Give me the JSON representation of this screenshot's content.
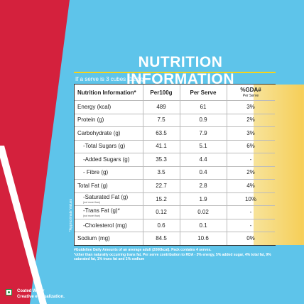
{
  "header": {
    "title": "NUTRITION INFORMATION",
    "subtitle": "If a serve is 3 cubes (12.5g)"
  },
  "table": {
    "columns": [
      "Nutrition Information*",
      "Per100g",
      "Per Serve",
      "%GDA#"
    ],
    "gda_sub": "Per Serve",
    "rows": [
      {
        "label": "Energy (kcal)",
        "per100g": "489",
        "per_serve": "61",
        "gda": "3%"
      },
      {
        "label": "Protein (g)",
        "per100g": "7.5",
        "per_serve": "0.9",
        "gda": "2%"
      },
      {
        "label": "Carbohydrate (g)",
        "per100g": "63.5",
        "per_serve": "7.9",
        "gda": "3%"
      },
      {
        "label": "-Total Sugars (g)",
        "per100g": "41.1",
        "per_serve": "5.1",
        "gda": "6%"
      },
      {
        "label": "-Added Sugars (g)",
        "per100g": "35.3",
        "per_serve": "4.4",
        "gda": "-"
      },
      {
        "label": "- Fibre (g)",
        "per100g": "3.5",
        "per_serve": "0.4",
        "gda": "2%"
      },
      {
        "label": "Total Fat (g)",
        "per100g": "22.7",
        "per_serve": "2.8",
        "gda": "4%"
      },
      {
        "label": "-Saturated Fat (g)",
        "note": "(not more than)",
        "per100g": "15.2",
        "per_serve": "1.9",
        "gda": "10%"
      },
      {
        "label": "-Trans Fat (g)*",
        "note": "(not more than)",
        "per100g": "0.12",
        "per_serve": "0.02",
        "gda": "-"
      },
      {
        "label": "-Cholesterol (mg)",
        "per100g": "0.6",
        "per_serve": "0.1",
        "gda": "-"
      },
      {
        "label": "Sodium (mg)",
        "per100g": "84.5",
        "per_serve": "10.6",
        "gda": "0%"
      }
    ]
  },
  "side_note": "*Approximate Values",
  "footnotes": [
    "#Guideline Daily Amounts of an average adult (2000kcal). Pack contains 4 serves.",
    "*other than naturally occurring trans fat. Per serve contribution to RDA - 3% energy, 5% added sugar, 4% total fat, 9% saturated fat, 1% trans fat and 1% sodium"
  ],
  "brand": {
    "line1": "Coated Wafer",
    "line2": "Creative eVisualization."
  }
}
